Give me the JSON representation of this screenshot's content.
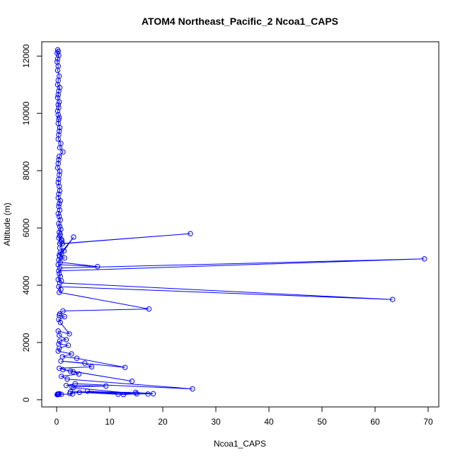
{
  "chart_data": {
    "type": "line",
    "title": "ATOM4 Northeast_Pacific_2 Ncoa1_CAPS",
    "xlabel": "Ncoa1_CAPS",
    "ylabel": "Altitude (m)",
    "xlim": [
      -2.8,
      72
    ],
    "ylim": [
      -250,
      12500
    ],
    "x_ticks": [
      0,
      10,
      20,
      30,
      40,
      50,
      60,
      70
    ],
    "y_ticks": [
      0,
      2000,
      4000,
      6000,
      8000,
      10000,
      12000
    ],
    "grid": false,
    "legend": "none",
    "line_color": "#0000ff",
    "marker": "open-circle",
    "series": [
      {
        "x": [
          0.2,
          0.3,
          0.1,
          0.4,
          0.2,
          0.1,
          0.3,
          0.2,
          0.5,
          0.3,
          0.2,
          0.6,
          0.4,
          0.3,
          0.2,
          0.5,
          0.3,
          0.4,
          0.2,
          0.3,
          0.5,
          0.4,
          0.3,
          0.6,
          0.5,
          0.4,
          0.3,
          0.8,
          0.6,
          1.2,
          0.5,
          0.4,
          0.3,
          0.2,
          0.6,
          0.5,
          0.4,
          0.3,
          0.5,
          0.6,
          0.4,
          0.3,
          0.7,
          0.5,
          0.4,
          0.6,
          0.3,
          0.5,
          0.7,
          0.4,
          0.6,
          0.8,
          0.5,
          0.7,
          0.6,
          0.4,
          0.9,
          1.0,
          0.8,
          0.6,
          25.2,
          1.1,
          0.6,
          1.4,
          0.7,
          0.9,
          0.5,
          3.2,
          0.6,
          1.5,
          0.4,
          0.7,
          7.7,
          0.3,
          0.6,
          69.3,
          0.4,
          0.5,
          0.7,
          0.3,
          0.9,
          0.6,
          63.3,
          0.4,
          0.8,
          0.5,
          17.4,
          1.2,
          0.6,
          0.5,
          1.5,
          0.4,
          0.7,
          2.4,
          0.3,
          0.5,
          1.8,
          0.6,
          0.4,
          2.2,
          0.5,
          0.3,
          2.8,
          1.1,
          3.8,
          12.9,
          0.8,
          5.3,
          6.6,
          0.5,
          2.6,
          14.2,
          1.2,
          3.1,
          4.2,
          0.9,
          2.0,
          25.6,
          3.5,
          1.8,
          9.3,
          2.9,
          3.2,
          15.1,
          12.6,
          5.8,
          17.2,
          2.6,
          14.9,
          18.2,
          11.6,
          4.3,
          2.5,
          3.0,
          0.9,
          0.3,
          0.5,
          0.2,
          0.4,
          0.1,
          0.3,
          0.2
        ]
      },
      {
        "y": [
          12220,
          12160,
          12100,
          12020,
          11900,
          11800,
          11650,
          11500,
          11300,
          11150,
          11000,
          10900,
          10780,
          10650,
          10550,
          10400,
          10300,
          10200,
          10080,
          9950,
          9850,
          9780,
          9650,
          9500,
          9380,
          9250,
          9100,
          8950,
          8800,
          8650,
          8500,
          8380,
          8250,
          8100,
          7980,
          7850,
          7700,
          7580,
          7450,
          7300,
          7180,
          7050,
          6950,
          6850,
          6750,
          6620,
          6500,
          6400,
          6280,
          6150,
          6050,
          5950,
          5850,
          5780,
          5720,
          5650,
          5600,
          5550,
          5500,
          5450,
          5800,
          5450,
          5300,
          5200,
          5150,
          5100,
          5050,
          5680,
          5000,
          4950,
          4880,
          4800,
          4650,
          4720,
          4600,
          4920,
          4500,
          4400,
          4300,
          4200,
          4150,
          4080,
          3500,
          3950,
          3850,
          3750,
          3170,
          3100,
          3000,
          2950,
          2900,
          2800,
          2700,
          2300,
          2400,
          2250,
          2100,
          2050,
          1950,
          1900,
          1800,
          1700,
          1600,
          1500,
          1450,
          1130,
          1350,
          1280,
          1150,
          1100,
          1000,
          650,
          1050,
          980,
          900,
          820,
          720,
          380,
          560,
          500,
          480,
          450,
          420,
          210,
          180,
          300,
          200,
          280,
          260,
          210,
          190,
          260,
          220,
          200,
          190,
          180,
          210,
          200,
          190,
          180,
          200,
          190
        ]
      }
    ]
  }
}
